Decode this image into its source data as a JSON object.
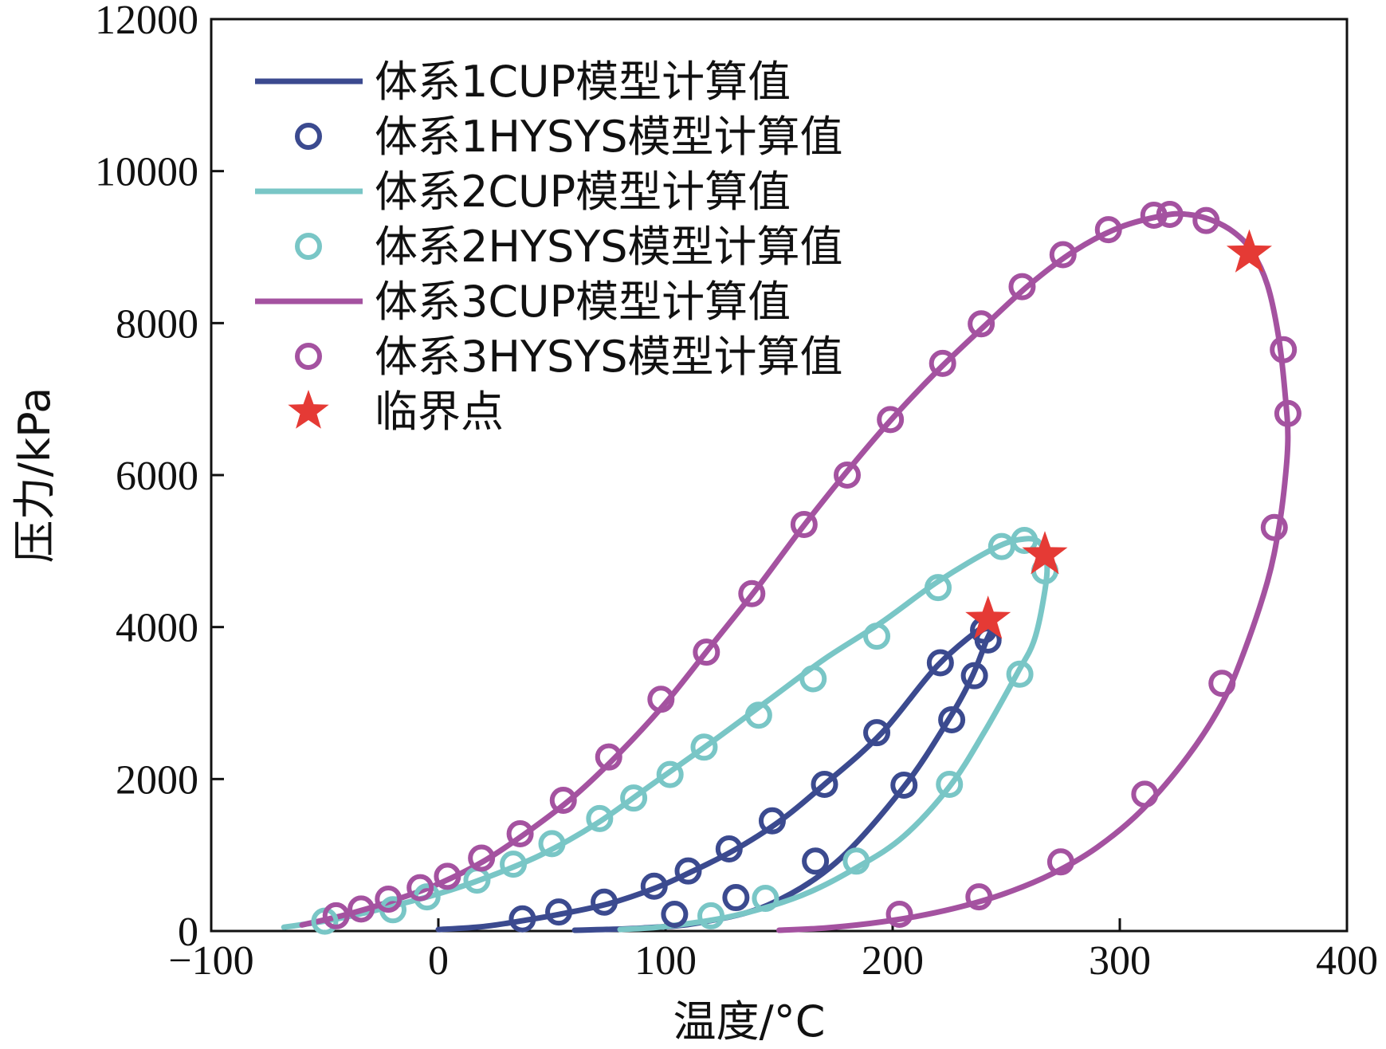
{
  "chart_data": {
    "type": "line",
    "title": "",
    "xlabel": "温度/°C",
    "ylabel": "压力/kPa",
    "xlim": [
      -100,
      400
    ],
    "ylim": [
      0,
      12000
    ],
    "xticks": [
      -100,
      0,
      100,
      200,
      300,
      400
    ],
    "yticks": [
      0,
      2000,
      4000,
      6000,
      8000,
      10000,
      12000
    ],
    "xtick_labels": [
      "−100",
      "0",
      "100",
      "200",
      "300",
      "400"
    ],
    "ytick_labels": [
      "0",
      "2000",
      "4000",
      "6000",
      "8000",
      "10000",
      "12000"
    ],
    "legend_position": "top-left",
    "colors": {
      "system1": "#3b4a8f",
      "system2": "#79c6c6",
      "system3": "#a452a0",
      "critical": "#e53a35"
    },
    "series": [
      {
        "name": "体系1CUP模型计算值",
        "kind": "line",
        "color_key": "system1",
        "x": [
          0,
          20,
          40,
          55,
          75,
          95,
          110,
          130,
          150,
          170,
          195,
          220,
          242,
          243,
          241,
          235,
          225,
          205,
          175,
          145,
          115,
          90,
          60
        ],
        "y": [
          20,
          60,
          150,
          230,
          360,
          560,
          760,
          1060,
          1440,
          1930,
          2600,
          3500,
          4050,
          3950,
          3800,
          3350,
          2800,
          1900,
          900,
          340,
          110,
          40,
          10
        ]
      },
      {
        "name": "体系1HYSYS模型计算值",
        "kind": "marker",
        "color_key": "system1",
        "x": [
          37,
          53,
          73,
          95,
          110,
          128,
          147,
          170,
          193,
          221,
          240,
          242,
          236,
          226,
          205,
          166,
          131,
          104
        ],
        "y": [
          160,
          250,
          380,
          590,
          790,
          1080,
          1450,
          1930,
          2610,
          3530,
          3960,
          3830,
          3360,
          2780,
          1920,
          920,
          440,
          220
        ]
      },
      {
        "name": "体系2CUP模型计算值",
        "kind": "line",
        "color_key": "system2",
        "x": [
          -68,
          -50,
          -35,
          -20,
          0,
          20,
          45,
          70,
          95,
          120,
          145,
          170,
          195,
          220,
          245,
          258,
          265,
          268,
          266,
          262,
          255,
          240,
          225,
          205,
          185,
          160,
          130,
          100,
          80
        ],
        "y": [
          50,
          130,
          220,
          330,
          490,
          690,
          1000,
          1420,
          1950,
          2480,
          3030,
          3580,
          4060,
          4600,
          5040,
          5160,
          5100,
          4800,
          4300,
          3800,
          3400,
          2600,
          1900,
          1250,
          850,
          470,
          200,
          60,
          20
        ]
      },
      {
        "name": "体系2HYSYS模型计算值",
        "kind": "marker",
        "color_key": "system2",
        "x": [
          -50,
          -20,
          -5,
          17,
          33,
          50,
          71,
          86,
          102,
          117,
          141,
          165,
          193,
          220,
          248,
          258,
          267,
          256,
          225,
          184,
          144,
          120
        ],
        "y": [
          130,
          280,
          450,
          670,
          880,
          1150,
          1480,
          1750,
          2060,
          2420,
          2840,
          3320,
          3880,
          4520,
          5060,
          5140,
          4740,
          3380,
          1930,
          920,
          430,
          200
        ]
      },
      {
        "name": "体系3CUP模型计算值",
        "kind": "line",
        "color_key": "system3",
        "x": [
          -60,
          -40,
          -20,
          0,
          20,
          40,
          60,
          80,
          100,
          120,
          140,
          160,
          180,
          200,
          220,
          240,
          260,
          280,
          300,
          320,
          330,
          340,
          350,
          358,
          365,
          370,
          373,
          374,
          373,
          370,
          365,
          355,
          345,
          330,
          310,
          290,
          270,
          250,
          230,
          210,
          190,
          170,
          150
        ],
        "y": [
          80,
          220,
          400,
          620,
          920,
          1320,
          1780,
          2350,
          3000,
          3750,
          4500,
          5300,
          6050,
          6750,
          7380,
          7950,
          8500,
          8950,
          9260,
          9420,
          9430,
          9360,
          9200,
          8950,
          8500,
          7800,
          7000,
          6500,
          6000,
          5300,
          4600,
          3700,
          3000,
          2300,
          1600,
          1100,
          750,
          500,
          320,
          190,
          100,
          40,
          10
        ]
      },
      {
        "name": "体系3HYSYS模型计算值",
        "kind": "marker",
        "color_key": "system3",
        "x": [
          -45,
          -34,
          -22,
          -8,
          4,
          19,
          36,
          55,
          75,
          98,
          118,
          138,
          161,
          180,
          199,
          222,
          239,
          257,
          275,
          295,
          315,
          322,
          338,
          372,
          374,
          368,
          345,
          311,
          274,
          238,
          203
        ],
        "y": [
          200,
          290,
          420,
          570,
          720,
          960,
          1280,
          1720,
          2290,
          3050,
          3670,
          4440,
          5350,
          6000,
          6730,
          7470,
          7990,
          8480,
          8900,
          9230,
          9420,
          9430,
          9350,
          7650,
          6810,
          5310,
          3260,
          1800,
          910,
          450,
          220
        ]
      },
      {
        "name": "临界点",
        "kind": "star",
        "color_key": "critical",
        "x": [
          242,
          267,
          357
        ],
        "y": [
          4100,
          4950,
          8920
        ]
      }
    ]
  }
}
